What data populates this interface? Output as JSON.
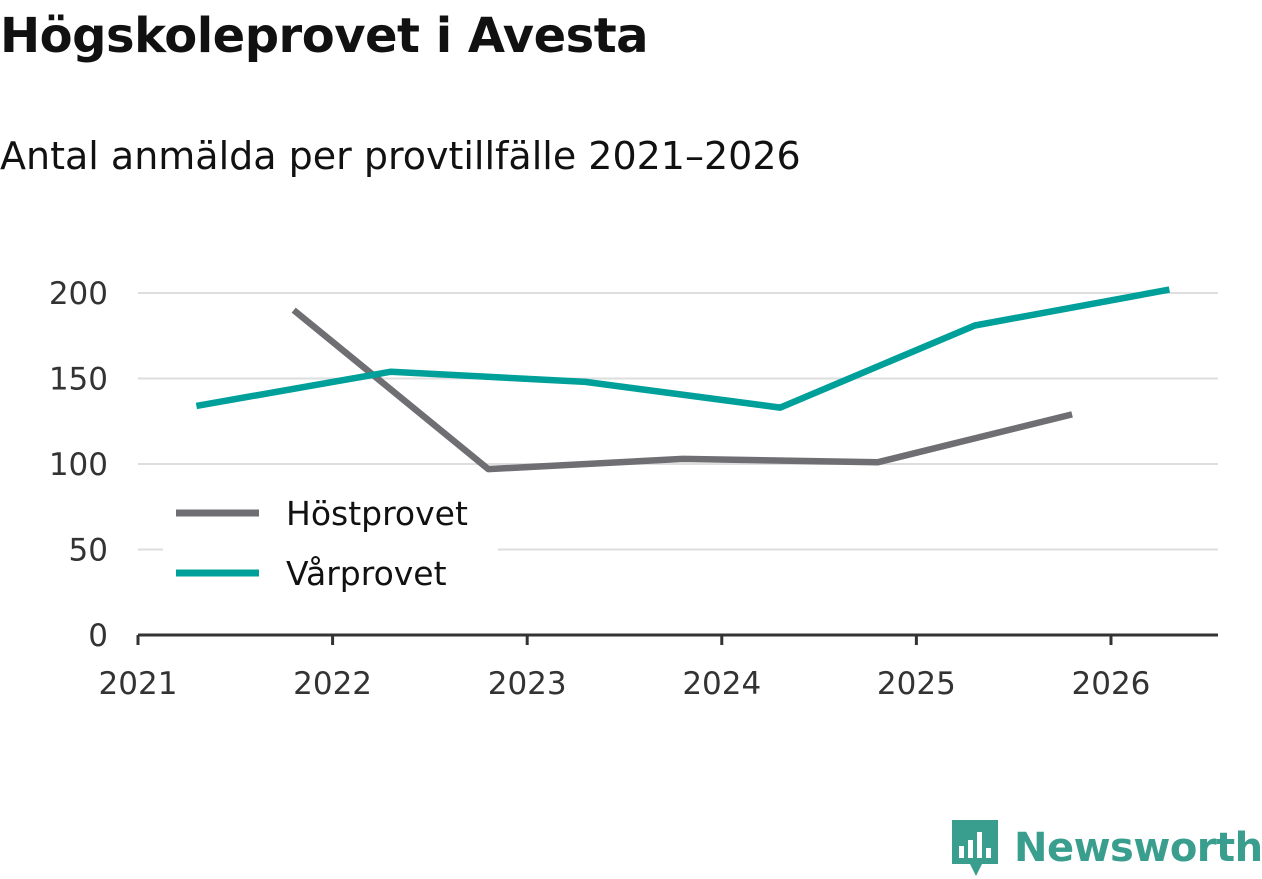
{
  "chart_data": {
    "type": "line",
    "title": "Högskoleprovet i Avesta",
    "subtitle": "Antal anmälda per provtillfälle 2021–2026",
    "xlabel": "",
    "ylabel": "",
    "xlim": [
      2021,
      2026.55
    ],
    "ylim": [
      0,
      200
    ],
    "x_ticks": [
      2021,
      2022,
      2023,
      2024,
      2025,
      2026
    ],
    "x_tick_labels": [
      "2021",
      "2022",
      "2023",
      "2024",
      "2025",
      "2026"
    ],
    "y_ticks": [
      0,
      50,
      100,
      150,
      200
    ],
    "y_tick_labels": [
      "0",
      "50",
      "100",
      "150",
      "200"
    ],
    "grid": true,
    "legend_position": "left-middle",
    "series": [
      {
        "name": "Höstprovet",
        "color": "#6e6e73",
        "x": [
          2021.8,
          2022.8,
          2023.8,
          2024.8,
          2025.8
        ],
        "values": [
          190,
          97,
          103,
          101,
          129
        ]
      },
      {
        "name": "Vårprovet",
        "color": "#00a09a",
        "x": [
          2021.3,
          2022.3,
          2023.3,
          2024.3,
          2025.3,
          2026.3
        ],
        "values": [
          134,
          154,
          148,
          133,
          181,
          202
        ]
      }
    ]
  },
  "brand": {
    "name": "Newsworthy",
    "icon": "newsworthy-logo-icon",
    "color": "#3a9e8f"
  }
}
